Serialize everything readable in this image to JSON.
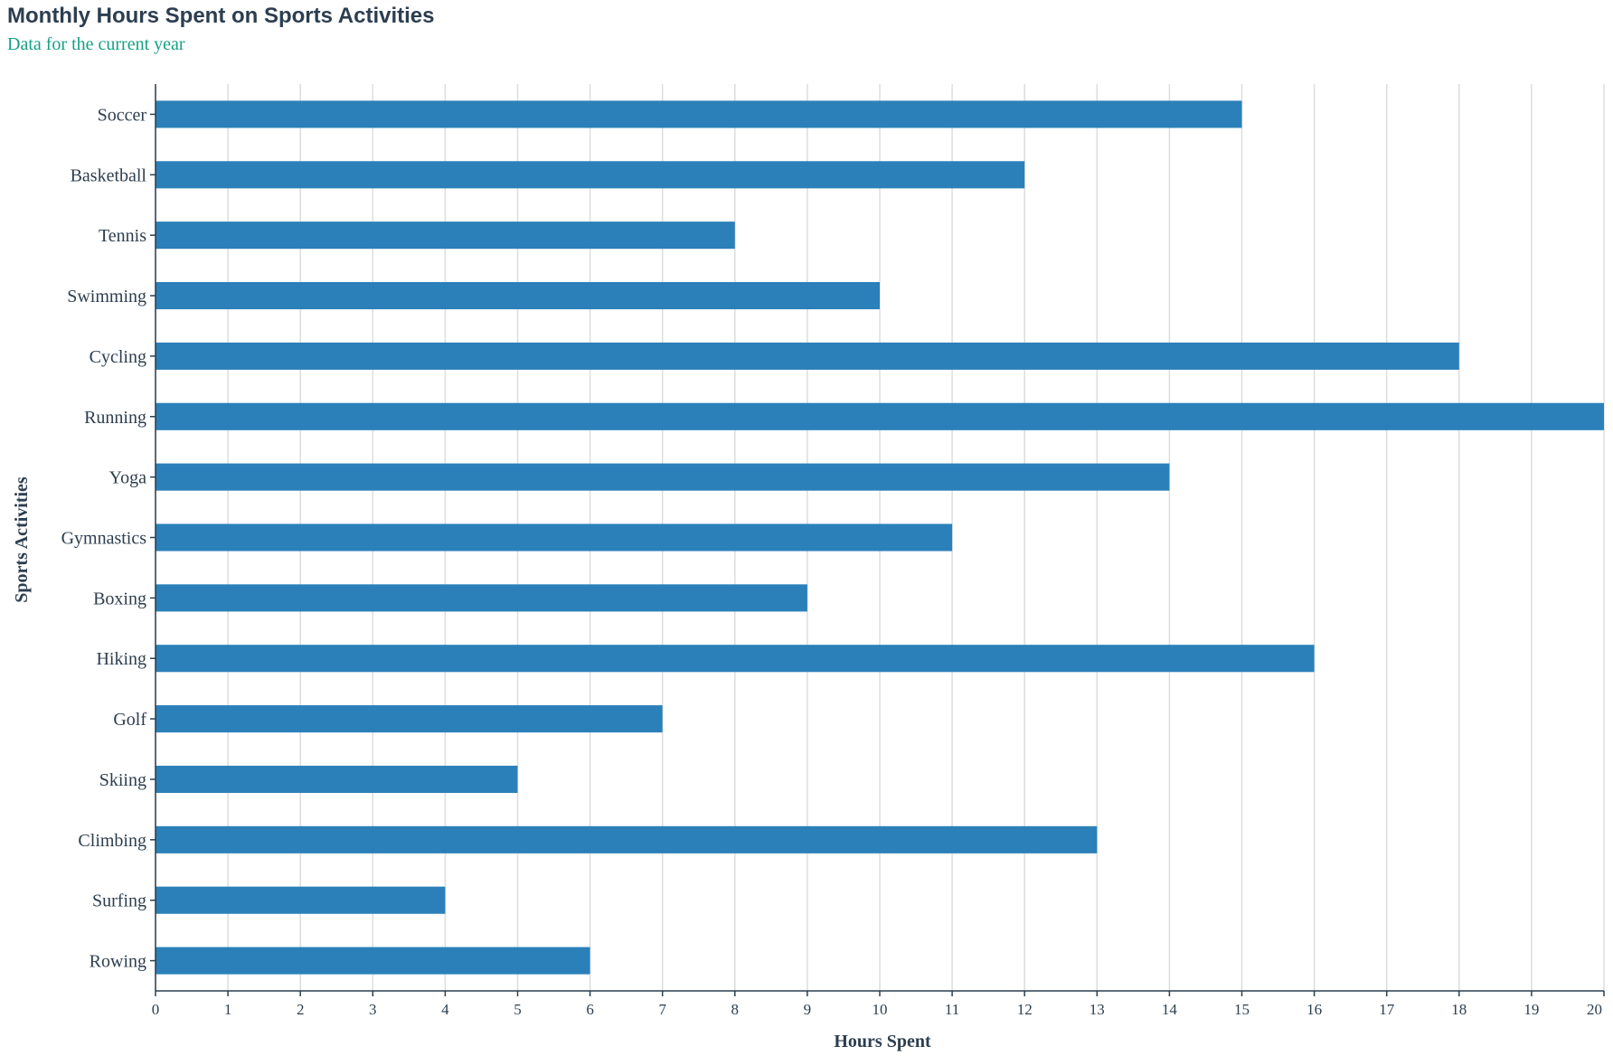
{
  "chart_data": {
    "type": "bar",
    "orientation": "horizontal",
    "title": "Monthly Hours Spent on Sports Activities",
    "subtitle": "Data for the current year",
    "xlabel": "Hours Spent",
    "ylabel": "Sports Activities",
    "xlim": [
      0,
      20
    ],
    "xticks": [
      "0",
      "1",
      "2",
      "3",
      "4",
      "5",
      "6",
      "7",
      "8",
      "9",
      "10",
      "11",
      "12",
      "13",
      "14",
      "15",
      "16",
      "17",
      "18",
      "19",
      "20"
    ],
    "grid": "vertical",
    "bar_color": "#2b80b9",
    "categories": [
      "Soccer",
      "Basketball",
      "Tennis",
      "Swimming",
      "Cycling",
      "Running",
      "Yoga",
      "Gymnastics",
      "Boxing",
      "Hiking",
      "Golf",
      "Skiing",
      "Climbing",
      "Surfing",
      "Rowing"
    ],
    "values": [
      15,
      12,
      8,
      10,
      18,
      20,
      14,
      11,
      9,
      16,
      7,
      5,
      13,
      4,
      6
    ]
  }
}
